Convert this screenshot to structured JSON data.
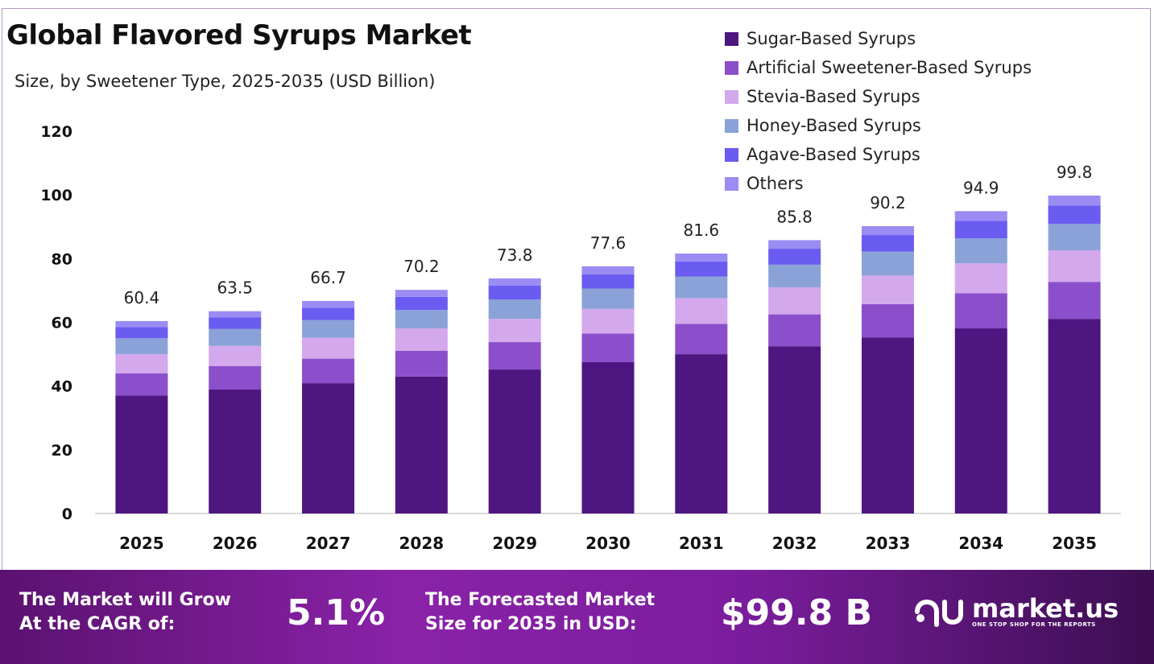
{
  "header": {
    "title": "Global Flavored Syrups Market",
    "subtitle": "Size, by Sweetener Type, 2025-2035 (USD Billion)"
  },
  "chart_data": {
    "type": "bar",
    "stacked": true,
    "title": "Global Flavored Syrups Market",
    "subtitle": "Size, by Sweetener Type, 2025-2035 (USD Billion)",
    "xlabel": "",
    "ylabel": "",
    "ylim": [
      0,
      120
    ],
    "yticks": [
      0,
      20,
      40,
      60,
      80,
      100,
      120
    ],
    "legend_position": "top-right",
    "grid": false,
    "categories": [
      "2025",
      "2026",
      "2027",
      "2028",
      "2029",
      "2030",
      "2031",
      "2032",
      "2033",
      "2034",
      "2035"
    ],
    "totals": [
      60.4,
      63.5,
      66.7,
      70.2,
      73.8,
      77.6,
      81.6,
      85.8,
      90.2,
      94.9,
      99.8
    ],
    "series": [
      {
        "name": "Sugar-Based Syrups",
        "color": "#4e1681",
        "values": [
          37.0,
          38.9,
          40.9,
          43.0,
          45.2,
          47.5,
          50.0,
          52.5,
          55.2,
          58.1,
          61.1
        ]
      },
      {
        "name": "Artificial Sweetener-Based Syrups",
        "color": "#8b4fcb",
        "values": [
          7.0,
          7.4,
          7.7,
          8.1,
          8.6,
          9.0,
          9.5,
          10.0,
          10.5,
          11.0,
          11.6
        ]
      },
      {
        "name": "Stevia-Based Syrups",
        "color": "#d3a8ec",
        "values": [
          6.0,
          6.3,
          6.6,
          7.0,
          7.3,
          7.7,
          8.1,
          8.5,
          9.0,
          9.4,
          9.9
        ]
      },
      {
        "name": "Honey-Based Syrups",
        "color": "#8ba2d8",
        "values": [
          5.0,
          5.3,
          5.5,
          5.8,
          6.1,
          6.4,
          6.8,
          7.1,
          7.5,
          7.9,
          8.3
        ]
      },
      {
        "name": "Agave-Based Syrups",
        "color": "#6a5cf0",
        "values": [
          3.5,
          3.7,
          3.9,
          4.1,
          4.3,
          4.5,
          4.7,
          5.0,
          5.2,
          5.5,
          5.8
        ]
      },
      {
        "name": "Others",
        "color": "#9a8cf2",
        "values": [
          1.9,
          1.9,
          2.1,
          2.2,
          2.3,
          2.5,
          2.5,
          2.7,
          2.8,
          3.0,
          3.1
        ]
      }
    ]
  },
  "footer": {
    "cagr_label_line1": "The Market will Grow",
    "cagr_label_line2": "At the CAGR of:",
    "cagr_value": "5.1%",
    "forecast_label_line1": "The Forecasted Market",
    "forecast_label_line2": "Size for 2035 in USD:",
    "forecast_value": "$99.8 B",
    "logo_text": "market.us",
    "logo_tagline": "ONE STOP SHOP FOR THE REPORTS"
  }
}
